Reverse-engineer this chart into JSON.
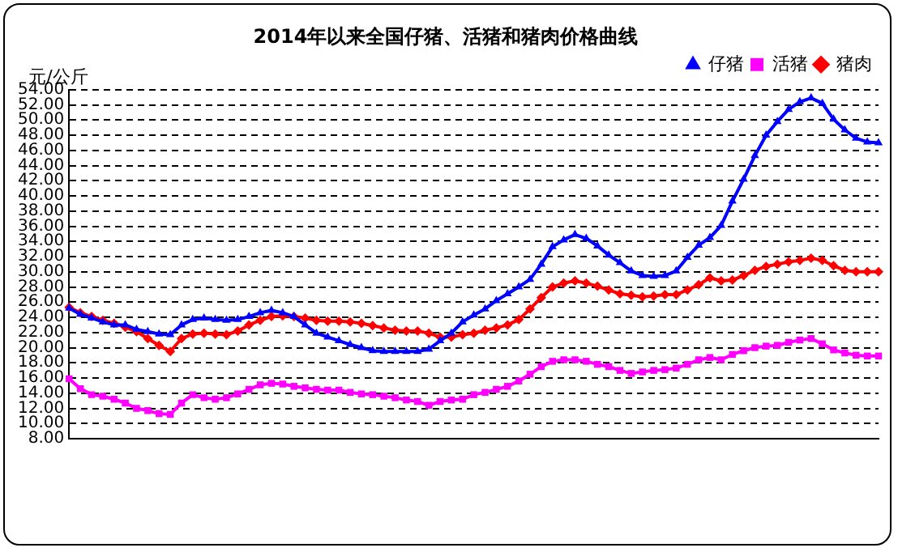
{
  "chart_data": {
    "type": "line",
    "title": "2014年以来全国仔猪、活猪和猪肉价格曲线",
    "ylabel": "元/公斤",
    "categories": [
      null,
      null,
      null,
      null,
      null,
      null,
      null,
      null,
      null,
      null,
      null,
      null,
      null,
      null,
      null,
      null,
      null,
      null,
      null,
      null,
      null,
      null,
      null,
      null,
      null,
      null,
      null,
      null,
      null,
      null,
      null,
      null,
      null,
      null,
      null,
      null,
      null,
      null,
      null,
      null,
      null,
      null,
      null,
      null,
      null,
      null,
      null,
      null,
      null,
      null,
      null,
      null,
      null,
      null,
      null,
      null,
      null,
      null,
      null,
      null,
      null,
      null,
      null,
      null,
      null,
      null,
      null,
      null,
      null,
      null,
      null,
      null,
      null
    ],
    "series": [
      {
        "name": "仔猪",
        "color": "#0000ff",
        "marker": "triangle",
        "values": [
          25.2,
          24.4,
          23.9,
          23.4,
          23.0,
          23.0,
          22.4,
          22.1,
          21.8,
          21.7,
          23.0,
          23.7,
          23.9,
          23.7,
          23.6,
          23.7,
          24.1,
          24.6,
          24.9,
          24.6,
          24.1,
          23.0,
          21.9,
          21.4,
          20.9,
          20.4,
          20.0,
          19.6,
          19.5,
          19.5,
          19.5,
          19.5,
          19.8,
          20.9,
          21.9,
          23.4,
          24.3,
          25.1,
          26.2,
          27.1,
          28.0,
          29.0,
          31.0,
          33.3,
          34.2,
          34.9,
          34.4,
          33.4,
          32.2,
          31.2,
          30.1,
          29.5,
          29.4,
          29.5,
          30.1,
          31.9,
          33.5,
          34.5,
          36.1,
          39.3,
          42.2,
          45.3,
          48.0,
          49.8,
          51.4,
          52.4,
          52.9,
          52.2,
          50.1,
          48.7,
          47.6,
          47.1,
          47.0
        ]
      },
      {
        "name": "活猪",
        "color": "#ff00ff",
        "marker": "square",
        "values": [
          15.9,
          14.6,
          13.8,
          13.6,
          13.2,
          12.7,
          12.0,
          11.7,
          11.3,
          11.2,
          12.7,
          13.8,
          13.4,
          13.2,
          13.4,
          13.9,
          14.5,
          15.1,
          15.3,
          15.2,
          14.9,
          14.7,
          14.5,
          14.4,
          14.4,
          14.1,
          13.9,
          13.8,
          13.6,
          13.4,
          13.1,
          12.9,
          12.4,
          12.9,
          13.1,
          13.2,
          13.8,
          14.1,
          14.5,
          14.9,
          15.6,
          16.5,
          17.5,
          18.2,
          18.4,
          18.4,
          18.2,
          17.8,
          17.5,
          17.0,
          16.6,
          16.8,
          17.0,
          17.1,
          17.3,
          17.8,
          18.4,
          18.7,
          18.4,
          19.1,
          19.6,
          20.0,
          20.2,
          20.3,
          20.7,
          21.0,
          21.2,
          20.5,
          19.7,
          19.3,
          19.0,
          18.9,
          18.9
        ]
      },
      {
        "name": "猪肉",
        "color": "#ff0000",
        "marker": "diamond",
        "values": [
          25.3,
          24.6,
          24.1,
          23.6,
          23.2,
          22.7,
          22.1,
          21.2,
          20.3,
          19.5,
          21.2,
          21.8,
          21.9,
          21.8,
          21.7,
          22.2,
          23.0,
          23.6,
          24.1,
          24.2,
          24.1,
          23.9,
          23.6,
          23.5,
          23.5,
          23.4,
          23.2,
          22.9,
          22.6,
          22.3,
          22.2,
          22.2,
          21.9,
          21.4,
          21.4,
          21.7,
          21.9,
          22.3,
          22.6,
          23.0,
          23.7,
          25.1,
          26.6,
          28.0,
          28.5,
          28.8,
          28.5,
          28.1,
          27.6,
          27.1,
          26.9,
          26.7,
          26.8,
          27.0,
          27.0,
          27.6,
          28.3,
          29.2,
          28.8,
          28.9,
          29.5,
          30.2,
          30.7,
          31.0,
          31.3,
          31.5,
          31.8,
          31.5,
          30.8,
          30.2,
          30.0,
          30.0,
          30.0
        ]
      }
    ],
    "ylim": [
      8,
      54
    ],
    "yticks": [
      {
        "value": 8,
        "label": "8.00"
      },
      {
        "value": 10,
        "label": "10.00"
      },
      {
        "value": 12,
        "label": "12.00"
      },
      {
        "value": 14,
        "label": "14.00"
      },
      {
        "value": 16,
        "label": "16.00"
      },
      {
        "value": 18,
        "label": "18.00"
      },
      {
        "value": 20,
        "label": "20.00"
      },
      {
        "value": 22,
        "label": "22.00"
      },
      {
        "value": 24,
        "label": "24.00"
      },
      {
        "value": 26,
        "label": "26.00"
      },
      {
        "value": 28,
        "label": "28.00"
      },
      {
        "value": 30,
        "label": "30.00"
      },
      {
        "value": 32,
        "label": "32.00"
      },
      {
        "value": 34,
        "label": "34.00"
      },
      {
        "value": 36,
        "label": "36.00"
      },
      {
        "value": 38,
        "label": "38.00"
      },
      {
        "value": 40,
        "label": "40.00"
      },
      {
        "value": 42,
        "label": "42.00"
      },
      {
        "value": 44,
        "label": "44.00"
      },
      {
        "value": 46,
        "label": "46.00"
      },
      {
        "value": 48,
        "label": "48.00"
      },
      {
        "value": 50,
        "label": "50.00"
      },
      {
        "value": 52,
        "label": "52.00"
      },
      {
        "value": 54,
        "label": "54.00"
      }
    ],
    "grid": "y",
    "legend": "top right",
    "tick_labels": "y",
    "line_style": "solid"
  }
}
